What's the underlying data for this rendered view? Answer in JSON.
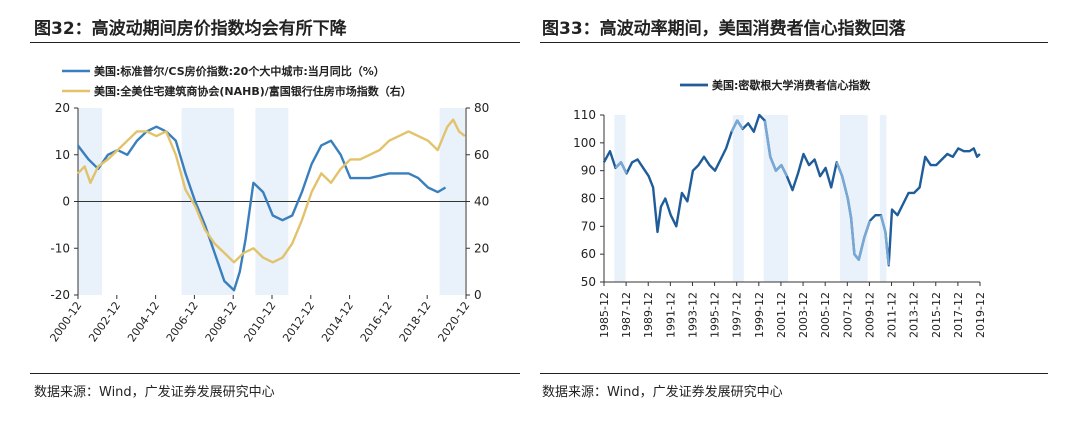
{
  "left": {
    "figure_title": "图32：高波动期间房价指数均会有所下降",
    "source": "数据来源：Wind，广发证券发展研究中心"
  },
  "right": {
    "figure_title": "图33：高波动率期间，美国消费者信心指数回落",
    "source": "数据来源：Wind，广发证券发展研究中心"
  },
  "chart_data": [
    {
      "type": "line",
      "title": "",
      "xlabel": "",
      "ylabel_left": "",
      "ylabel_right": "",
      "x_tick_labels": [
        "2000-12",
        "2002-12",
        "2004-12",
        "2006-12",
        "2008-12",
        "2010-12",
        "2012-12",
        "2014-12",
        "2016-12",
        "2018-12",
        "2020-12"
      ],
      "y_left_ticks": [
        20,
        10,
        0,
        -10,
        -20
      ],
      "y_right_ticks": [
        80,
        60,
        40,
        20,
        0
      ],
      "ylim_left": [
        -20,
        20
      ],
      "ylim_right": [
        0,
        80
      ],
      "legend_placement": "top-left",
      "grid": false,
      "shaded_periods": [
        [
          2000.95,
          2002.2
        ],
        [
          2006.3,
          2009.0
        ],
        [
          2010.1,
          2011.8
        ],
        [
          2019.6,
          2020.9
        ]
      ],
      "shade_color": "#e9f1fa",
      "series": [
        {
          "name": "美国:标准普尔/CS房价指数:20个大中城市:当月同比（%）",
          "axis": "left",
          "color": "#3a7fbd",
          "x": [
            2000.95,
            2001.5,
            2002.0,
            2002.5,
            2003.0,
            2003.5,
            2004.0,
            2004.5,
            2005.0,
            2005.5,
            2006.0,
            2006.5,
            2007.0,
            2007.5,
            2008.0,
            2008.5,
            2009.0,
            2009.3,
            2009.6,
            2010.0,
            2010.5,
            2011.0,
            2011.5,
            2012.0,
            2012.5,
            2013.0,
            2013.5,
            2014.0,
            2014.5,
            2015.0,
            2016.0,
            2017.0,
            2018.0,
            2018.5,
            2019.0,
            2019.5,
            2019.9
          ],
          "values": [
            12,
            9,
            7,
            10,
            11,
            10,
            13,
            15,
            16,
            15,
            13,
            6,
            0,
            -5,
            -11,
            -17,
            -19,
            -15,
            -8,
            4,
            2,
            -3,
            -4,
            -3,
            2,
            8,
            12,
            13,
            10,
            5,
            5,
            6,
            6,
            5,
            3,
            2,
            3
          ]
        },
        {
          "name": "美国:全美住宅建筑商协会(NAHB)/富国银行住房市场指数（右）",
          "axis": "right",
          "color": "#e2c36b",
          "x": [
            2000.95,
            2001.3,
            2001.6,
            2002.0,
            2002.5,
            2003.0,
            2003.5,
            2004.0,
            2004.5,
            2005.0,
            2005.5,
            2006.0,
            2006.5,
            2007.0,
            2007.5,
            2008.0,
            2008.5,
            2009.0,
            2009.5,
            2010.0,
            2010.5,
            2011.0,
            2011.5,
            2012.0,
            2012.5,
            2013.0,
            2013.5,
            2014.0,
            2014.5,
            2015.0,
            2015.5,
            2016.0,
            2016.5,
            2017.0,
            2017.5,
            2018.0,
            2018.5,
            2019.0,
            2019.5,
            2020.0,
            2020.3,
            2020.6,
            2020.9
          ],
          "values": [
            52,
            55,
            48,
            55,
            58,
            62,
            66,
            70,
            70,
            68,
            70,
            60,
            45,
            38,
            28,
            22,
            18,
            14,
            18,
            20,
            16,
            14,
            16,
            22,
            32,
            44,
            52,
            48,
            54,
            58,
            58,
            60,
            62,
            66,
            68,
            70,
            68,
            66,
            62,
            72,
            75,
            70,
            68
          ]
        }
      ]
    },
    {
      "type": "line",
      "title": "",
      "xlabel": "",
      "ylabel": "",
      "x_tick_labels": [
        "1985-12",
        "1987-12",
        "1989-12",
        "1991-12",
        "1993-12",
        "1995-12",
        "1997-12",
        "1999-12",
        "2001-12",
        "2003-12",
        "2005-12",
        "2007-12",
        "2009-12",
        "2011-12",
        "2013-12",
        "2015-12",
        "2017-12",
        "2019-12"
      ],
      "y_ticks": [
        110,
        100,
        90,
        80,
        70,
        60,
        50
      ],
      "ylim": [
        50,
        110
      ],
      "legend_placement": "top-left",
      "grid": false,
      "shaded_periods": [
        [
          1986.9,
          1987.9
        ],
        [
          1997.6,
          1998.6
        ],
        [
          2000.4,
          2002.6
        ],
        [
          2007.3,
          2009.8
        ],
        [
          2010.9,
          2011.5
        ]
      ],
      "shade_color": "#e9f1fa",
      "series": [
        {
          "name": "美国:密歇根大学消费者信心指数",
          "color": "#1f5c99",
          "highlight_color": "#7aa8d4",
          "x": [
            1985.95,
            1986.5,
            1987.0,
            1987.5,
            1988.0,
            1988.5,
            1989.0,
            1989.5,
            1990.0,
            1990.4,
            1990.8,
            1991.1,
            1991.5,
            1992.0,
            1992.5,
            1993.0,
            1993.5,
            1994.0,
            1994.5,
            1995.0,
            1995.5,
            1996.0,
            1996.5,
            1997.0,
            1997.5,
            1998.0,
            1998.5,
            1999.0,
            1999.5,
            2000.0,
            2000.5,
            2001.0,
            2001.5,
            2002.0,
            2002.5,
            2003.0,
            2003.5,
            2004.0,
            2004.5,
            2005.0,
            2005.5,
            2006.0,
            2006.5,
            2007.0,
            2007.5,
            2008.0,
            2008.3,
            2008.6,
            2009.0,
            2009.5,
            2010.0,
            2010.5,
            2011.0,
            2011.4,
            2011.7,
            2012.0,
            2012.5,
            2013.0,
            2013.5,
            2014.0,
            2014.5,
            2015.0,
            2015.5,
            2016.0,
            2016.5,
            2017.0,
            2017.5,
            2018.0,
            2018.5,
            2019.0,
            2019.4,
            2019.7,
            2019.95
          ],
          "values": [
            93,
            97,
            91,
            93,
            89,
            93,
            94,
            91,
            88,
            84,
            68,
            77,
            80,
            74,
            70,
            82,
            79,
            90,
            92,
            95,
            92,
            90,
            94,
            98,
            104,
            108,
            105,
            107,
            104,
            110,
            108,
            95,
            90,
            92,
            88,
            83,
            89,
            96,
            92,
            94,
            88,
            91,
            84,
            93,
            88,
            80,
            73,
            60,
            58,
            66,
            72,
            74,
            74,
            68,
            56,
            76,
            74,
            78,
            82,
            82,
            84,
            95,
            92,
            92,
            94,
            96,
            95,
            98,
            97,
            97,
            98,
            95,
            96
          ]
        }
      ]
    }
  ]
}
